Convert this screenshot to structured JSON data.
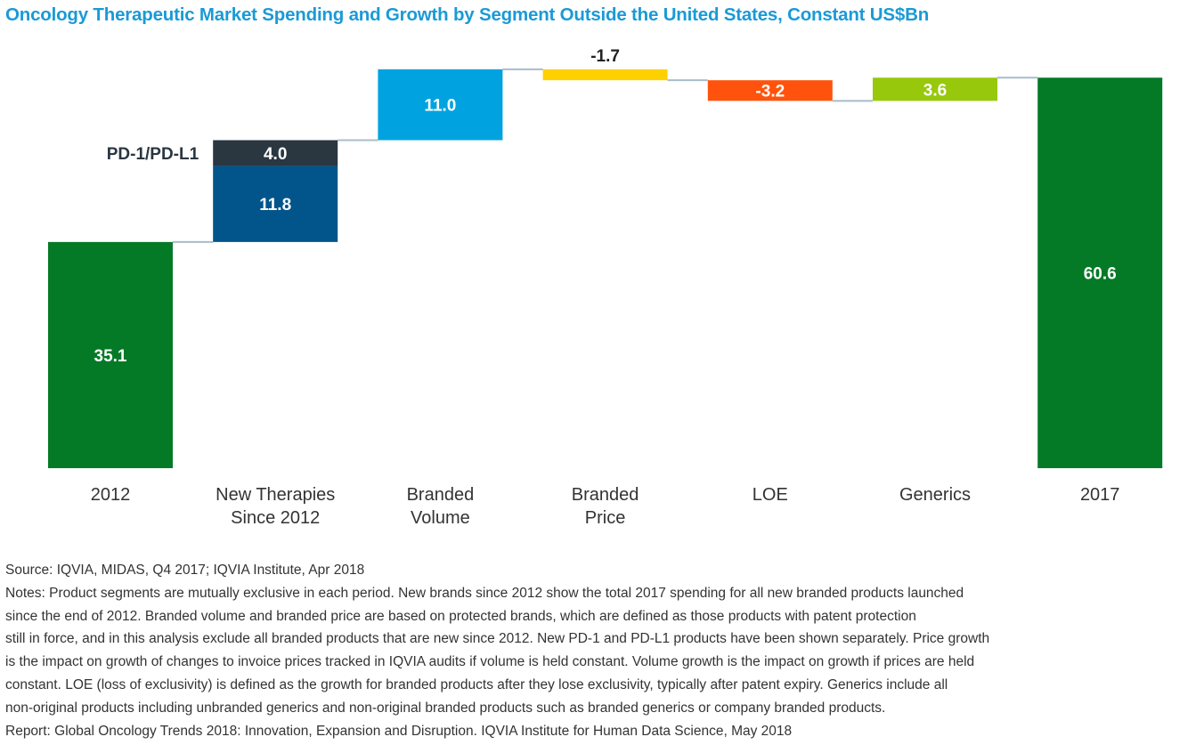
{
  "title": "Oncology Therapeutic Market Spending and Growth by Segment Outside the United States, Constant US$Bn",
  "chart_data": {
    "type": "waterfall",
    "title": "Oncology Therapeutic Market Spending and Growth by Segment Outside the United States, Constant US$Bn",
    "xlabel": "",
    "ylabel": "",
    "ylim": [
      0,
      60.6
    ],
    "categories": [
      [
        "2012"
      ],
      [
        "New Therapies",
        "Since 2012"
      ],
      [
        "Branded",
        "Volume"
      ],
      [
        "Branded",
        "Price"
      ],
      [
        "LOE"
      ],
      [
        "Generics"
      ],
      [
        "2017"
      ]
    ],
    "bars": [
      {
        "category": "2012",
        "kind": "total",
        "value": 35.1,
        "label": "35.1",
        "color": "#047a27",
        "label_color": "#ffffff"
      },
      {
        "category": "New Therapies Since 2012",
        "kind": "delta",
        "value": 11.8,
        "label": "11.8",
        "color": "#01558a",
        "label_color": "#ffffff"
      },
      {
        "category": "New Therapies Since 2012",
        "kind": "delta",
        "value": 4.0,
        "label": "4.0",
        "color": "#2a3640",
        "label_color": "#ffffff",
        "side_label": "PD-1/PD-L1"
      },
      {
        "category": "Branded Volume",
        "kind": "delta",
        "value": 11.0,
        "label": "11.0",
        "color": "#00a3e0",
        "label_color": "#ffffff"
      },
      {
        "category": "Branded Price",
        "kind": "delta",
        "value": -1.7,
        "label": "-1.7",
        "color": "#ffd000",
        "label_color": "#222222",
        "label_position": "above"
      },
      {
        "category": "LOE",
        "kind": "delta",
        "value": -3.2,
        "label": "-3.2",
        "color": "#ff530d",
        "label_color": "#ffffff"
      },
      {
        "category": "Generics",
        "kind": "delta",
        "value": 3.6,
        "label": "3.6",
        "color": "#97c80c",
        "label_color": "#ffffff"
      },
      {
        "category": "2017",
        "kind": "total",
        "value": 60.6,
        "label": "60.6",
        "color": "#047a27",
        "label_color": "#ffffff"
      }
    ],
    "connector_color": "#a8bcc9",
    "legend": "none",
    "grid": false
  },
  "footer": {
    "source": "Source: IQVIA, MIDAS, Q4 2017; IQVIA Institute, Apr 2018",
    "notes_lines": [
      "Notes: Product segments are mutually exclusive in each period. New brands since 2012 show the total 2017 spending for all new branded products launched",
      "since the end of 2012. Branded volume and branded price are based on protected brands, which are defined as those products with patent protection",
      "still in force, and in this analysis exclude all branded products that are new since 2012. New PD-1 and PD-L1 products have been shown separately. Price growth",
      "is the impact on growth of changes to invoice prices tracked in IQVIA audits if volume is held constant. Volume growth is the impact on growth if prices are held",
      "constant. LOE (loss of exclusivity) is defined as the growth for branded products after they lose exclusivity, typically after patent expiry. Generics include all",
      "non-original products including unbranded generics and non-original branded products such as branded generics or company branded products."
    ],
    "report": "Report: Global Oncology Trends 2018: Innovation, Expansion and Disruption. IQVIA Institute for Human Data Science, May 2018"
  }
}
